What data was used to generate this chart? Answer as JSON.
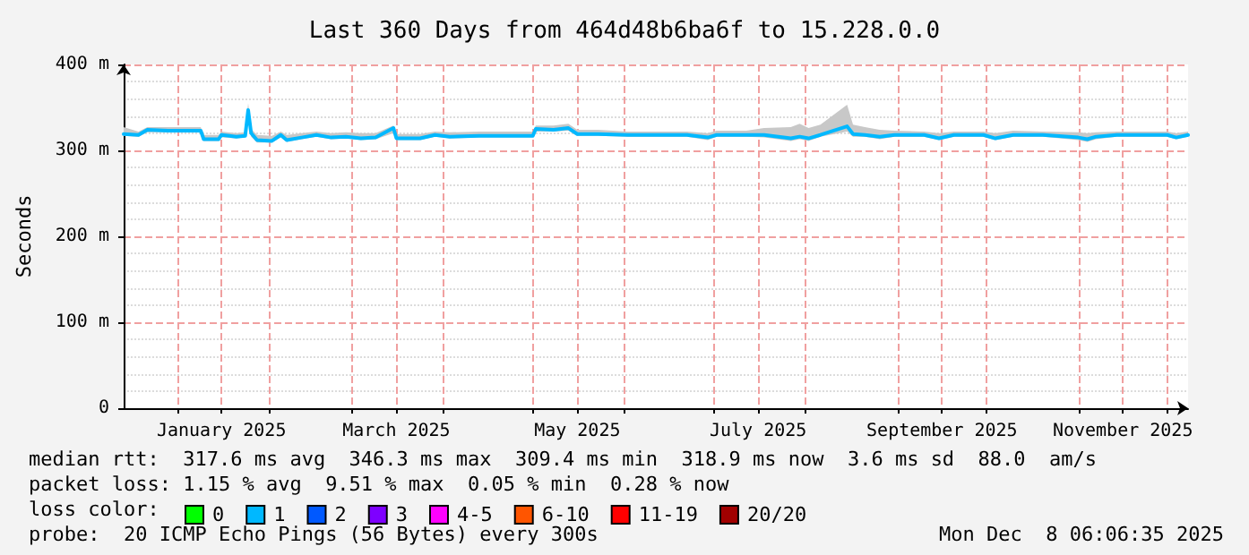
{
  "chart_data": {
    "type": "line",
    "title": "Last 360 Days from 464d48b6ba6f to 15.228.0.0",
    "ylabel": "Seconds",
    "x": [
      "2024-12-14",
      "2024-12-19",
      "2024-12-22",
      "2024-12-29",
      "2025-01-03",
      "2025-01-09",
      "2025-01-10",
      "2025-01-15",
      "2025-01-16",
      "2025-01-21",
      "2025-01-24",
      "2025-01-25",
      "2025-01-26",
      "2025-01-28",
      "2025-02-02",
      "2025-02-05",
      "2025-02-07",
      "2025-02-12",
      "2025-02-17",
      "2025-02-22",
      "2025-02-27",
      "2025-03-04",
      "2025-03-09",
      "2025-03-15",
      "2025-03-16",
      "2025-03-24",
      "2025-03-29",
      "2025-04-03",
      "2025-04-13",
      "2025-04-23",
      "2025-05-01",
      "2025-05-02",
      "2025-05-08",
      "2025-05-13",
      "2025-05-16",
      "2025-05-23",
      "2025-06-02",
      "2025-06-12",
      "2025-06-22",
      "2025-06-29",
      "2025-07-02",
      "2025-07-12",
      "2025-07-18",
      "2025-07-27",
      "2025-07-30",
      "2025-08-02",
      "2025-08-06",
      "2025-08-15",
      "2025-08-17",
      "2025-08-21",
      "2025-08-26",
      "2025-08-31",
      "2025-09-10",
      "2025-09-15",
      "2025-09-20",
      "2025-09-30",
      "2025-10-04",
      "2025-10-10",
      "2025-10-20",
      "2025-11-01",
      "2025-11-04",
      "2025-11-07",
      "2025-11-14",
      "2025-11-24",
      "2025-12-01",
      "2025-12-04",
      "2025-12-08"
    ],
    "series": [
      {
        "name": "0",
        "color": "#00ff00",
        "values": [
          null,
          null,
          null,
          null,
          null,
          null,
          null,
          null,
          null,
          null,
          null,
          null,
          null,
          null,
          null,
          null,
          null,
          null,
          null,
          null,
          null,
          null,
          null,
          null,
          null,
          null,
          null,
          null,
          null,
          null,
          null,
          null,
          null,
          null,
          null,
          null,
          null,
          null,
          null,
          null,
          null,
          null,
          null,
          null,
          null,
          null,
          null,
          null,
          null,
          null,
          null,
          null,
          null,
          null,
          null,
          null,
          null,
          null,
          null,
          null,
          null,
          null,
          null,
          null,
          null,
          null,
          null
        ]
      },
      {
        "name": "1",
        "color": "#00b8ff",
        "values": [
          319,
          318,
          324,
          323,
          323,
          323,
          313,
          313,
          318,
          316,
          317,
          347,
          320,
          312,
          311,
          318,
          312,
          315,
          318,
          315,
          316,
          314,
          315,
          326,
          314,
          314,
          318,
          316,
          317,
          317,
          317,
          325,
          324,
          326,
          319,
          319,
          318,
          318,
          318,
          315,
          318,
          318,
          318,
          314,
          316,
          314,
          318,
          328,
          319,
          318,
          316,
          318,
          318,
          314,
          318,
          318,
          314,
          318,
          318,
          315,
          313,
          316,
          318,
          318,
          318,
          315,
          318
        ],
        "lower": [
          317,
          316,
          321,
          321,
          321,
          321,
          311,
          311,
          315,
          314,
          315,
          343,
          316,
          309,
          309,
          315,
          310,
          313,
          316,
          313,
          314,
          312,
          313,
          320,
          312,
          312,
          316,
          314,
          315,
          315,
          315,
          322,
          322,
          323,
          317,
          317,
          316,
          316,
          316,
          312,
          316,
          316,
          315,
          311,
          313,
          311,
          316,
          322,
          316,
          316,
          313,
          316,
          316,
          312,
          316,
          316,
          312,
          316,
          316,
          312,
          310,
          313,
          316,
          316,
          316,
          313,
          316
        ],
        "upper": [
          327,
          322,
          327,
          327,
          327,
          327,
          318,
          318,
          322,
          320,
          321,
          355,
          325,
          318,
          317,
          322,
          318,
          320,
          322,
          320,
          321,
          320,
          320,
          329,
          319,
          319,
          322,
          321,
          322,
          322,
          322,
          329,
          329,
          331,
          324,
          324,
          322,
          322,
          322,
          320,
          323,
          323,
          326,
          327,
          331,
          326,
          330,
          353,
          330,
          327,
          324,
          323,
          322,
          320,
          322,
          322,
          320,
          323,
          322,
          321,
          320,
          321,
          322,
          322,
          322,
          320,
          322
        ]
      },
      {
        "name": "2",
        "color": "#0059ff",
        "values": [
          null,
          null,
          null,
          null,
          null,
          null,
          null,
          null,
          null,
          null,
          null,
          null,
          null,
          null,
          null,
          null,
          null,
          null,
          null,
          null,
          null,
          null,
          null,
          null,
          null,
          null,
          null,
          null,
          null,
          null,
          null,
          null,
          null,
          null,
          null,
          null,
          null,
          null,
          null,
          null,
          null,
          null,
          null,
          null,
          null,
          null,
          null,
          null,
          null,
          null,
          null,
          null,
          null,
          null,
          null,
          null,
          null,
          null,
          null,
          null,
          null,
          null,
          null,
          null,
          null,
          null,
          null
        ]
      },
      {
        "name": "3",
        "color": "#7e00ff",
        "values": [
          null,
          null,
          null,
          null,
          null,
          null,
          null,
          null,
          null,
          null,
          null,
          null,
          null,
          null,
          null,
          null,
          null,
          null,
          null,
          null,
          null,
          null,
          null,
          null,
          null,
          null,
          null,
          null,
          null,
          null,
          null,
          null,
          null,
          null,
          null,
          null,
          null,
          null,
          null,
          null,
          null,
          null,
          null,
          null,
          null,
          null,
          null,
          null,
          null,
          null,
          null,
          null,
          null,
          null,
          null,
          null,
          null,
          null,
          null,
          null,
          null,
          null,
          null,
          null,
          null,
          null,
          null
        ]
      },
      {
        "name": "4-5",
        "color": "#ff00ff",
        "values": [
          null,
          null,
          null,
          null,
          null,
          null,
          null,
          null,
          null,
          null,
          null,
          null,
          null,
          null,
          null,
          null,
          null,
          null,
          null,
          null,
          null,
          null,
          null,
          null,
          null,
          null,
          null,
          null,
          null,
          null,
          null,
          null,
          null,
          null,
          null,
          null,
          null,
          null,
          null,
          null,
          null,
          null,
          null,
          null,
          null,
          null,
          null,
          null,
          null,
          null,
          null,
          null,
          null,
          null,
          null,
          null,
          null,
          null,
          null,
          null,
          null,
          null,
          null,
          null,
          null,
          null,
          null
        ]
      },
      {
        "name": "6-10",
        "color": "#ff5500",
        "values": [
          null,
          null,
          null,
          null,
          null,
          null,
          null,
          null,
          null,
          null,
          null,
          null,
          null,
          null,
          null,
          null,
          null,
          null,
          null,
          null,
          null,
          null,
          null,
          null,
          null,
          null,
          null,
          null,
          null,
          null,
          null,
          null,
          null,
          null,
          null,
          null,
          null,
          null,
          null,
          null,
          null,
          null,
          null,
          null,
          null,
          null,
          null,
          null,
          null,
          null,
          null,
          null,
          null,
          null,
          null,
          null,
          null,
          null,
          null,
          null,
          null,
          null,
          null,
          null,
          null,
          null,
          null
        ]
      },
      {
        "name": "11-19",
        "color": "#ff0000",
        "values": [
          null,
          null,
          null,
          null,
          null,
          null,
          null,
          null,
          null,
          null,
          null,
          null,
          null,
          null,
          null,
          null,
          null,
          null,
          null,
          null,
          null,
          null,
          null,
          null,
          null,
          null,
          null,
          null,
          null,
          null,
          null,
          null,
          null,
          null,
          null,
          null,
          null,
          null,
          null,
          null,
          null,
          null,
          null,
          null,
          null,
          null,
          null,
          null,
          null,
          null,
          null,
          null,
          null,
          null,
          null,
          null,
          null,
          null,
          null,
          null,
          null,
          null,
          null,
          null,
          null,
          null,
          null
        ]
      },
      {
        "name": "20/20",
        "color": "#a10000",
        "values": [
          null,
          null,
          null,
          null,
          null,
          null,
          null,
          null,
          null,
          null,
          null,
          null,
          null,
          null,
          null,
          null,
          null,
          null,
          null,
          null,
          null,
          null,
          null,
          null,
          null,
          null,
          null,
          null,
          null,
          null,
          null,
          null,
          null,
          null,
          null,
          null,
          null,
          null,
          null,
          null,
          null,
          null,
          null,
          null,
          null,
          null,
          null,
          null,
          null,
          null,
          null,
          null,
          null,
          null,
          null,
          null,
          null,
          null,
          null,
          null,
          null,
          null,
          null,
          null,
          null,
          null,
          null
        ]
      }
    ],
    "xlim": [
      "2024-12-14",
      "2025-12-08"
    ],
    "xticks": [
      {
        "value": "2025-01-01",
        "label": null
      },
      {
        "value": "2025-01-16",
        "label": "January 2025"
      },
      {
        "value": "2025-02-01",
        "label": null
      },
      {
        "value": "2025-03-01",
        "label": null
      },
      {
        "value": "2025-03-16",
        "label": "March 2025"
      },
      {
        "value": "2025-04-01",
        "label": null
      },
      {
        "value": "2025-05-01",
        "label": null
      },
      {
        "value": "2025-05-16",
        "label": "May 2025"
      },
      {
        "value": "2025-06-01",
        "label": null
      },
      {
        "value": "2025-07-01",
        "label": null
      },
      {
        "value": "2025-07-16",
        "label": "July 2025"
      },
      {
        "value": "2025-08-01",
        "label": null
      },
      {
        "value": "2025-09-01",
        "label": null
      },
      {
        "value": "2025-09-16",
        "label": "September 2025"
      },
      {
        "value": "2025-10-01",
        "label": null
      },
      {
        "value": "2025-11-01",
        "label": null
      },
      {
        "value": "2025-11-16",
        "label": "November 2025"
      },
      {
        "value": "2025-12-01",
        "label": null
      }
    ],
    "ylim": [
      0,
      400
    ],
    "yticks": [
      0,
      {
        "value": 100,
        "label": "100 m"
      },
      {
        "value": 200,
        "label": "200 m"
      },
      {
        "value": 300,
        "label": "300 m"
      },
      {
        "value": 400,
        "label": "400 m"
      }
    ],
    "grid": true,
    "legend": "bottom",
    "marker": "none",
    "line_style": "solid",
    "legend_title": "loss color:",
    "annotations": [
      "median rtt:  317.6 ms avg  346.3 ms max  309.4 ms min  318.9 ms now  3.6 ms sd  88.0  am/s",
      "packet loss: 1.15 % avg  9.51 % max  0.05 % min  0.28 % now",
      "probe:  20 ICMP Echo Pings (56 Bytes) every 300s",
      "Mon Dec  8 06:06:35 2025"
    ]
  }
}
